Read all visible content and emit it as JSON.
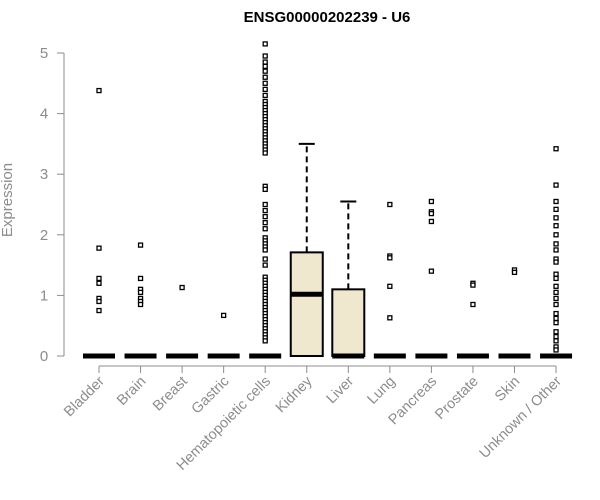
{
  "chart_data": {
    "type": "boxplot",
    "title": "ENSG00000202239 - U6",
    "ylabel": "Expression",
    "xlabel": "",
    "ylim": [
      0,
      5.2
    ],
    "yticks": [
      0,
      1,
      2,
      3,
      4,
      5
    ],
    "grid": false,
    "legend": "none",
    "colors": {
      "box_fill": "#efe8cf",
      "stroke": "#000000",
      "axis": "#8c8c8c"
    },
    "categories": [
      "Bladder",
      "Brain",
      "Breast",
      "Gastric",
      "Hematopoietic cells",
      "Kidney",
      "Liver",
      "Lung",
      "Pancreas",
      "Prostate",
      "Skin",
      "Unknown / Other"
    ],
    "boxes": [
      {
        "category": "Bladder",
        "q1": 0,
        "median": 0,
        "q3": 0,
        "whisker_low": 0,
        "whisker_high": 0,
        "outliers": [
          4.38,
          1.78,
          1.28,
          1.2,
          0.95,
          0.9,
          0.75
        ]
      },
      {
        "category": "Brain",
        "q1": 0,
        "median": 0,
        "q3": 0,
        "whisker_low": 0,
        "whisker_high": 0,
        "outliers": [
          1.83,
          1.28,
          1.1,
          1.05,
          0.95,
          0.9,
          0.85
        ]
      },
      {
        "category": "Breast",
        "q1": 0,
        "median": 0,
        "q3": 0,
        "whisker_low": 0,
        "whisker_high": 0,
        "outliers": [
          1.13
        ]
      },
      {
        "category": "Gastric",
        "q1": 0,
        "median": 0,
        "q3": 0,
        "whisker_low": 0,
        "whisker_high": 0,
        "outliers": [
          0.67
        ]
      },
      {
        "category": "Hematopoietic cells",
        "q1": 0,
        "median": 0,
        "q3": 0,
        "whisker_low": 0,
        "whisker_high": 0,
        "outliers": [
          5.15,
          4.95,
          4.85,
          4.78,
          4.7,
          4.6,
          4.5,
          4.4,
          4.3,
          4.2,
          4.15,
          4.1,
          4.05,
          4.0,
          3.95,
          3.9,
          3.85,
          3.8,
          3.75,
          3.7,
          3.65,
          3.6,
          3.55,
          3.5,
          3.45,
          3.4,
          3.35,
          2.8,
          2.75,
          2.5,
          2.4,
          2.3,
          2.2,
          2.1,
          1.95,
          1.9,
          1.85,
          1.8,
          1.75,
          1.6,
          1.5,
          1.3,
          1.25,
          1.2,
          1.15,
          1.1,
          1.05,
          1.0,
          0.95,
          0.9,
          0.85,
          0.8,
          0.75,
          0.7,
          0.65,
          0.6,
          0.55,
          0.5,
          0.45,
          0.4,
          0.35,
          0.3,
          0.25
        ]
      },
      {
        "category": "Kidney",
        "q1": 0,
        "median": 1.02,
        "q3": 1.71,
        "whisker_low": 0,
        "whisker_high": 3.5,
        "outliers": []
      },
      {
        "category": "Liver",
        "q1": 0,
        "median": 0,
        "q3": 1.1,
        "whisker_low": 0,
        "whisker_high": 2.55,
        "outliers": []
      },
      {
        "category": "Lung",
        "q1": 0,
        "median": 0,
        "q3": 0,
        "whisker_low": 0,
        "whisker_high": 0,
        "outliers": [
          2.5,
          1.65,
          1.62,
          1.15,
          0.63
        ]
      },
      {
        "category": "Pancreas",
        "q1": 0,
        "median": 0,
        "q3": 0,
        "whisker_low": 0,
        "whisker_high": 0,
        "outliers": [
          2.55,
          2.38,
          2.35,
          2.22,
          1.4
        ]
      },
      {
        "category": "Prostate",
        "q1": 0,
        "median": 0,
        "q3": 0,
        "whisker_low": 0,
        "whisker_high": 0,
        "outliers": [
          1.2,
          1.17,
          0.85
        ]
      },
      {
        "category": "Skin",
        "q1": 0,
        "median": 0,
        "q3": 0,
        "whisker_low": 0,
        "whisker_high": 0,
        "outliers": [
          1.42,
          1.38
        ]
      },
      {
        "category": "Unknown / Other",
        "q1": 0,
        "median": 0,
        "q3": 0,
        "whisker_low": 0,
        "whisker_high": 0,
        "outliers": [
          3.42,
          2.82,
          2.55,
          2.42,
          2.28,
          2.15,
          2.0,
          1.85,
          1.75,
          1.6,
          1.55,
          1.35,
          1.28,
          1.15,
          1.05,
          0.95,
          0.85,
          0.7,
          0.62,
          0.55,
          0.4,
          0.32,
          0.25,
          0.15,
          0.1
        ]
      }
    ]
  }
}
